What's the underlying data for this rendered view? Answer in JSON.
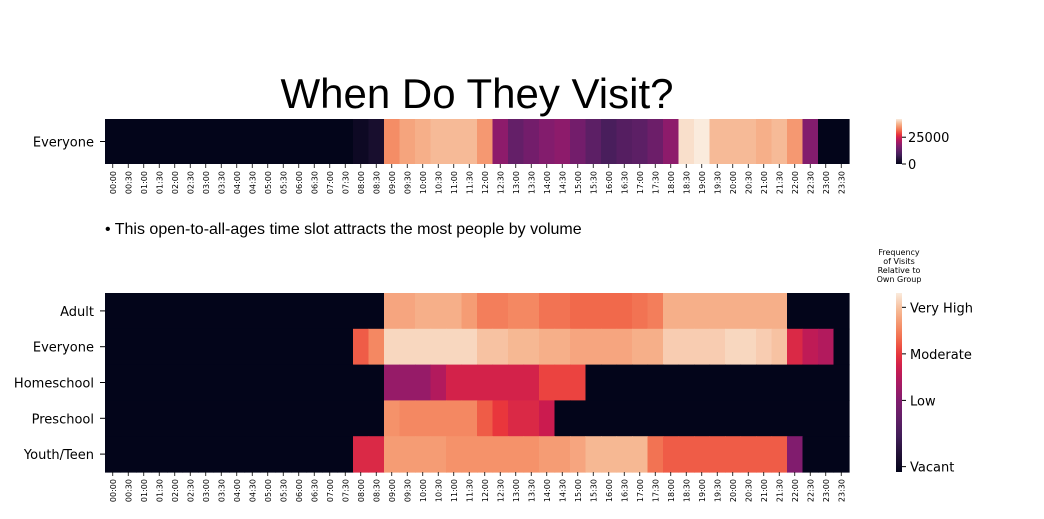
{
  "title": "When Do They Visit?",
  "note": "• This open-to-all-ages time slot attracts the most people by volume",
  "chart_data": [
    {
      "type": "heatmap",
      "title": "When Do They Visit?",
      "x": [
        "00:00",
        "00:30",
        "01:00",
        "01:30",
        "02:00",
        "02:30",
        "03:00",
        "03:30",
        "04:00",
        "04:30",
        "05:00",
        "05:30",
        "06:00",
        "06:30",
        "07:00",
        "07:30",
        "08:00",
        "08:30",
        "09:00",
        "09:30",
        "10:00",
        "10:30",
        "11:00",
        "11:30",
        "12:00",
        "12:30",
        "13:00",
        "13:30",
        "14:00",
        "14:30",
        "15:00",
        "15:30",
        "16:00",
        "16:30",
        "17:00",
        "17:30",
        "18:00",
        "18:30",
        "19:00",
        "19:30",
        "20:00",
        "20:30",
        "21:00",
        "21:30",
        "22:00",
        "22:30",
        "23:00",
        "23:30"
      ],
      "y": [
        "Everyone"
      ],
      "values": [
        [
          0,
          0,
          0,
          0,
          0,
          0,
          0,
          0,
          0,
          0,
          0,
          0,
          0,
          0,
          0,
          0,
          1500,
          3000,
          34000,
          36000,
          37000,
          38000,
          38000,
          38000,
          35000,
          18000,
          13000,
          15000,
          17000,
          18000,
          15000,
          12000,
          9500,
          11000,
          12000,
          14000,
          18000,
          41000,
          42000,
          38000,
          38000,
          38000,
          37000,
          38000,
          35000,
          17000,
          0,
          0
        ]
      ],
      "colorbar": {
        "ticks": [
          0,
          25000
        ],
        "range": [
          0,
          42000
        ]
      }
    },
    {
      "type": "heatmap",
      "colorbar_title": "Frequency of Visits Relative to Own Group",
      "x": [
        "00:00",
        "00:30",
        "01:00",
        "01:30",
        "02:00",
        "02:30",
        "03:00",
        "03:30",
        "04:00",
        "04:30",
        "05:00",
        "05:30",
        "06:00",
        "06:30",
        "07:00",
        "07:30",
        "08:00",
        "08:30",
        "09:00",
        "09:30",
        "10:00",
        "10:30",
        "11:00",
        "11:30",
        "12:00",
        "12:30",
        "13:00",
        "13:30",
        "14:00",
        "14:30",
        "15:00",
        "15:30",
        "16:00",
        "16:30",
        "17:00",
        "17:30",
        "18:00",
        "18:30",
        "19:00",
        "19:30",
        "20:00",
        "20:30",
        "21:00",
        "21:30",
        "22:00",
        "22:30",
        "23:00",
        "23:30"
      ],
      "y": [
        "Adult",
        "Everyone",
        "Homeschool",
        "Preschool",
        "Youth/Teen"
      ],
      "values": [
        [
          0,
          0,
          0,
          0,
          0,
          0,
          0,
          0,
          0,
          0,
          0,
          0,
          0,
          0,
          0,
          0,
          0,
          0,
          0.86,
          0.86,
          0.88,
          0.88,
          0.88,
          0.84,
          0.78,
          0.78,
          0.8,
          0.8,
          0.76,
          0.76,
          0.74,
          0.74,
          0.74,
          0.74,
          0.76,
          0.78,
          0.88,
          0.88,
          0.88,
          0.88,
          0.88,
          0.88,
          0.88,
          0.88,
          0,
          0,
          0,
          0
        ],
        [
          0,
          0,
          0,
          0,
          0,
          0,
          0,
          0,
          0,
          0,
          0,
          0,
          0,
          0,
          0,
          0,
          0.72,
          0.8,
          0.96,
          0.96,
          0.96,
          0.96,
          0.96,
          0.96,
          0.92,
          0.92,
          0.9,
          0.9,
          0.88,
          0.88,
          0.86,
          0.86,
          0.86,
          0.86,
          0.88,
          0.88,
          0.94,
          0.94,
          0.94,
          0.94,
          0.96,
          0.96,
          0.94,
          0.92,
          0.62,
          0.55,
          0.52,
          0
        ],
        [
          0,
          0,
          0,
          0,
          0,
          0,
          0,
          0,
          0,
          0,
          0,
          0,
          0,
          0,
          0,
          0,
          0,
          0,
          0.45,
          0.45,
          0.45,
          0.52,
          0.6,
          0.6,
          0.6,
          0.6,
          0.6,
          0.6,
          0.68,
          0.68,
          0.68,
          0,
          0,
          0,
          0,
          0,
          0,
          0,
          0,
          0,
          0,
          0,
          0,
          0,
          0,
          0,
          0,
          0
        ],
        [
          0,
          0,
          0,
          0,
          0,
          0,
          0,
          0,
          0,
          0,
          0,
          0,
          0,
          0,
          0,
          0,
          0,
          0,
          0.82,
          0.8,
          0.8,
          0.8,
          0.8,
          0.8,
          0.72,
          0.66,
          0.62,
          0.62,
          0.58,
          0,
          0,
          0,
          0,
          0,
          0,
          0,
          0,
          0,
          0,
          0,
          0,
          0,
          0,
          0,
          0,
          0,
          0,
          0
        ],
        [
          0,
          0,
          0,
          0,
          0,
          0,
          0,
          0,
          0,
          0,
          0,
          0,
          0,
          0,
          0,
          0,
          0.62,
          0.62,
          0.84,
          0.84,
          0.84,
          0.84,
          0.82,
          0.82,
          0.82,
          0.82,
          0.82,
          0.82,
          0.84,
          0.84,
          0.86,
          0.9,
          0.9,
          0.9,
          0.9,
          0.76,
          0.72,
          0.72,
          0.72,
          0.72,
          0.72,
          0.72,
          0.72,
          0.72,
          0.4,
          0,
          0,
          0
        ]
      ],
      "colorbar": {
        "labels": [
          "Very High",
          "Moderate",
          "Low",
          "Vacant"
        ]
      }
    }
  ],
  "colors": {
    "dark": "#03051a",
    "light": "#faebdd"
  }
}
